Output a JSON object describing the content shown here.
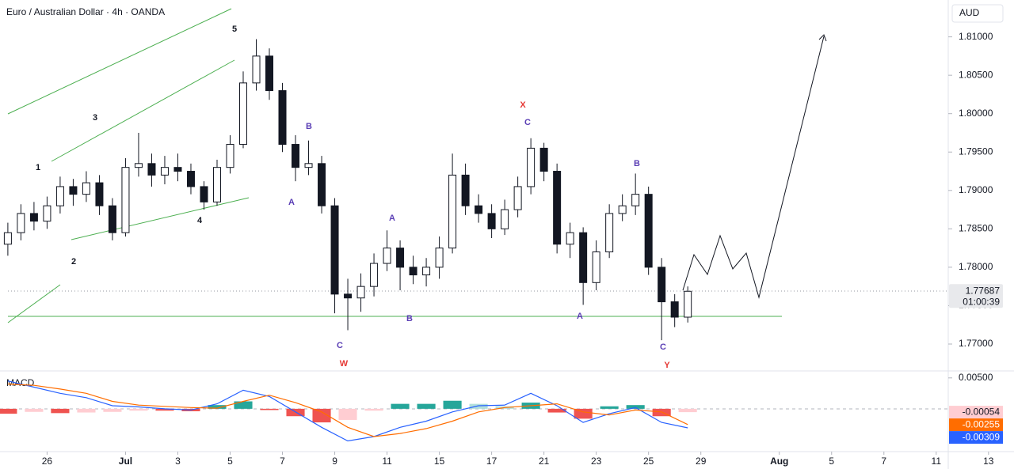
{
  "chart_data": [
    {
      "type": "candlestick",
      "title": "Euro / Australian Dollar · 4h · OANDA",
      "y_axis_label": "AUD",
      "x": [
        -1.5,
        -1,
        -0.5,
        0,
        0.5,
        1,
        1.5,
        2,
        2.5,
        3,
        3.5,
        4,
        4.5,
        5,
        5.5,
        6,
        6.5,
        7,
        7.5,
        8,
        8.5,
        9,
        9.5,
        10,
        10.5,
        11,
        11.5,
        12,
        12.5,
        13,
        13.5,
        14,
        14.5,
        15,
        15.5,
        16,
        16.5,
        17,
        17.5,
        18,
        18.5,
        19,
        19.5,
        20,
        20.5,
        21,
        21.5,
        22,
        22.5,
        23,
        23.5,
        24,
        24.5
      ],
      "open": [
        1.783,
        1.7845,
        1.787,
        1.786,
        1.788,
        1.7905,
        1.7895,
        1.791,
        1.788,
        1.7845,
        1.793,
        1.7935,
        1.792,
        1.793,
        1.7925,
        1.7905,
        1.7885,
        1.793,
        1.796,
        1.804,
        1.8075,
        1.803,
        1.796,
        1.793,
        1.7935,
        1.788,
        1.7765,
        1.776,
        1.7775,
        1.7805,
        1.7825,
        1.78,
        1.779,
        1.78,
        1.7825,
        1.792,
        1.788,
        1.787,
        1.785,
        1.7875,
        1.7905,
        1.7955,
        1.7925,
        1.783,
        1.7845,
        1.778,
        1.782,
        1.787,
        1.788,
        1.7895,
        1.78,
        1.7755,
        1.7735
      ],
      "high": [
        1.7858,
        1.7882,
        1.7885,
        1.7892,
        1.7918,
        1.7915,
        1.7925,
        1.792,
        1.789,
        1.7942,
        1.7975,
        1.7948,
        1.7945,
        1.7948,
        1.7935,
        1.7912,
        1.794,
        1.7972,
        1.8055,
        1.8097,
        1.8085,
        1.804,
        1.7972,
        1.7965,
        1.7945,
        1.789,
        1.7785,
        1.7792,
        1.7818,
        1.7848,
        1.7835,
        1.7815,
        1.7812,
        1.784,
        1.7948,
        1.7935,
        1.7895,
        1.7882,
        1.7888,
        1.7918,
        1.7968,
        1.7962,
        1.7935,
        1.7858,
        1.7852,
        1.7835,
        1.7882,
        1.7895,
        1.7922,
        1.7905,
        1.7812,
        1.7765,
        1.7775
      ],
      "low": [
        1.7815,
        1.7835,
        1.7848,
        1.785,
        1.787,
        1.788,
        1.7885,
        1.7868,
        1.7835,
        1.784,
        1.7918,
        1.7905,
        1.7908,
        1.7912,
        1.7895,
        1.7875,
        1.788,
        1.7922,
        1.7955,
        1.803,
        1.8018,
        1.795,
        1.7912,
        1.792,
        1.787,
        1.774,
        1.7718,
        1.7742,
        1.7762,
        1.7795,
        1.777,
        1.7778,
        1.7775,
        1.7785,
        1.7818,
        1.7868,
        1.7858,
        1.7838,
        1.7842,
        1.7865,
        1.7895,
        1.7912,
        1.7818,
        1.7812,
        1.7751,
        1.777,
        1.7812,
        1.786,
        1.7868,
        1.779,
        1.7705,
        1.7722,
        1.7728
      ],
      "close": [
        1.7845,
        1.787,
        1.786,
        1.788,
        1.7905,
        1.7895,
        1.791,
        1.788,
        1.7845,
        1.793,
        1.7935,
        1.792,
        1.793,
        1.7925,
        1.7905,
        1.7885,
        1.793,
        1.796,
        1.804,
        1.8075,
        1.803,
        1.796,
        1.793,
        1.7935,
        1.788,
        1.7765,
        1.776,
        1.7775,
        1.7805,
        1.7825,
        1.78,
        1.779,
        1.78,
        1.7825,
        1.792,
        1.788,
        1.787,
        1.785,
        1.7875,
        1.7905,
        1.7955,
        1.7925,
        1.783,
        1.7845,
        1.778,
        1.782,
        1.787,
        1.788,
        1.7895,
        1.78,
        1.7755,
        1.7735,
        1.77687
      ],
      "countdown": "01:00:39",
      "xlim": [
        -1.8,
        34.4
      ],
      "xticks": [
        {
          "value": 0,
          "label": "26"
        },
        {
          "value": 3,
          "label": "Jul"
        },
        {
          "value": 5,
          "label": "3"
        },
        {
          "value": 7,
          "label": "5"
        },
        {
          "value": 9,
          "label": "7"
        },
        {
          "value": 11,
          "label": "9"
        },
        {
          "value": 13,
          "label": "11"
        },
        {
          "value": 15,
          "label": "15"
        },
        {
          "value": 17,
          "label": "17"
        },
        {
          "value": 19,
          "label": "21"
        },
        {
          "value": 21,
          "label": "23"
        },
        {
          "value": 23,
          "label": "25"
        },
        {
          "value": 25,
          "label": "29"
        },
        {
          "value": 28,
          "label": "Aug"
        },
        {
          "value": 30,
          "label": "5"
        },
        {
          "value": 32,
          "label": "7"
        },
        {
          "value": 34,
          "label": "11"
        },
        {
          "value": 36,
          "label": "13"
        }
      ],
      "ylim": [
        1.7666,
        1.8148
      ],
      "yticks": [
        {
          "value": 1.77,
          "label": "1.77000"
        },
        {
          "value": 1.775,
          "label": "1.77500"
        },
        {
          "value": 1.78,
          "label": "1.78000"
        },
        {
          "value": 1.785,
          "label": "1.78500"
        },
        {
          "value": 1.79,
          "label": "1.79000"
        },
        {
          "value": 1.795,
          "label": "1.79500"
        },
        {
          "value": 1.8,
          "label": "1.80000"
        },
        {
          "value": 1.805,
          "label": "1.80500"
        },
        {
          "value": 1.81,
          "label": "1.81000"
        }
      ],
      "annotations": [
        {
          "text": "1",
          "color": "#131722"
        },
        {
          "text": "2",
          "color": "#131722"
        },
        {
          "text": "3",
          "color": "#131722"
        },
        {
          "text": "4",
          "color": "#131722"
        },
        {
          "text": "5",
          "color": "#131722"
        },
        {
          "text": "B",
          "color": "#5b3fb5"
        },
        {
          "text": "A",
          "color": "#5b3fb5"
        },
        {
          "text": "C",
          "color": "#5b3fb5"
        },
        {
          "text": "W",
          "color": "#e53935"
        },
        {
          "text": "A",
          "color": "#5b3fb5"
        },
        {
          "text": "B",
          "color": "#5b3fb5"
        },
        {
          "text": "X",
          "color": "#e53935"
        },
        {
          "text": "C",
          "color": "#5b3fb5"
        },
        {
          "text": "A",
          "color": "#5b3fb5"
        },
        {
          "text": "B",
          "color": "#5b3fb5"
        },
        {
          "text": "C",
          "color": "#5b3fb5"
        },
        {
          "text": "Y",
          "color": "#e53935"
        }
      ]
    },
    {
      "type": "macd",
      "title": "MACD",
      "x": [
        -1.5,
        -0.5,
        0.5,
        1.5,
        2.5,
        3.5,
        4.5,
        5.5,
        6.5,
        7.5,
        8.5,
        9.5,
        10.5,
        11.5,
        12.5,
        13.5,
        14.5,
        15.5,
        16.5,
        17.5,
        18.5,
        19.5,
        20.5,
        21.5,
        22.5,
        23.5,
        24.5
      ],
      "histogram": [
        -0.0008,
        -0.0005,
        -0.0007,
        -0.0006,
        -0.0005,
        -0.0003,
        -0.0003,
        -0.0004,
        0.0006,
        0.0012,
        -0.0002,
        -0.0012,
        -0.0022,
        -0.0018,
        -0.0003,
        0.0008,
        0.0008,
        0.0013,
        0.0008,
        0.0004,
        0.001,
        -0.0006,
        -0.0016,
        0.0004,
        0.0006,
        -0.0012,
        -0.00054
      ],
      "series": [
        {
          "name": "MACD",
          "color": "#2962ff",
          "values": [
            0.0045,
            0.0035,
            0.0025,
            0.0018,
            0.0005,
            0.0003,
            0.0,
            -0.0002,
            0.0008,
            0.003,
            0.002,
            -0.0005,
            -0.003,
            -0.0052,
            -0.0045,
            -0.003,
            -0.002,
            -0.0005,
            0.0005,
            0.0006,
            0.0025,
            0.0005,
            -0.0022,
            -0.0008,
            0.0002,
            -0.0022,
            -0.00309
          ]
        },
        {
          "name": "Signal",
          "color": "#ff6d00",
          "values": [
            0.004,
            0.0038,
            0.0032,
            0.0025,
            0.0012,
            0.0006,
            0.0004,
            0.0002,
            0.0001,
            0.0012,
            0.0022,
            0.001,
            -0.0005,
            -0.003,
            -0.0045,
            -0.004,
            -0.0032,
            -0.002,
            -0.0005,
            0.0002,
            0.0005,
            0.0008,
            -0.0005,
            -0.001,
            -0.0002,
            -0.0005,
            -0.00255
          ]
        }
      ],
      "ylim": [
        -0.0068,
        0.006
      ],
      "yticks": [
        {
          "value": 0.005,
          "label": "0.00500"
        }
      ]
    }
  ]
}
